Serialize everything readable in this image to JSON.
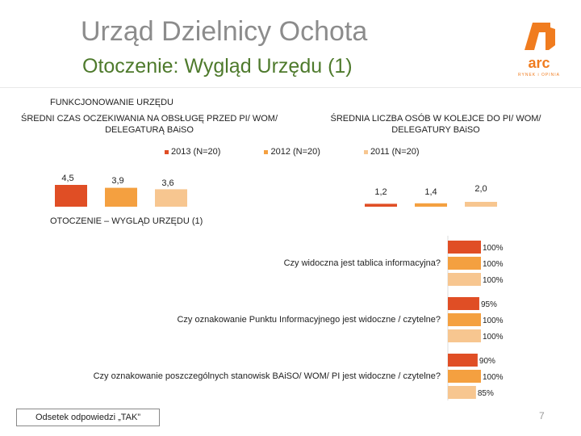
{
  "header": {
    "title": "Urząd Dzielnicy Ochota",
    "subtitle": "Otoczenie: Wygląd Urzędu (1)",
    "logo_text": "arc",
    "logo_subtext": "RYNEK i OPINIA"
  },
  "colors": {
    "s2013": "#e04e25",
    "s2012": "#f4a040",
    "s2011": "#f7c690"
  },
  "chart_data": [
    {
      "type": "bar",
      "section_title": "FUNKCJONOWANIE URZĘDU",
      "title": "ŚREDNI CZAS OCZEKIWANIA NA OBSŁUGĘ PRZED PI/ WOM/ DELEGATURĄ BAiSO",
      "series": [
        {
          "name": "2013 (N=20)",
          "values": [
            4.5
          ]
        },
        {
          "name": "2012 (N=20)",
          "values": [
            3.9
          ]
        },
        {
          "name": "2011 (N=20)",
          "values": [
            3.6
          ]
        }
      ],
      "value_labels": [
        "4,5",
        "3,9",
        "3,6"
      ]
    },
    {
      "type": "bar",
      "title": "ŚREDNIA LICZBA OSÓB W KOLEJCE DO PI/ WOM/ DELEGATURY BAiSO",
      "series": [
        {
          "name": "2013 (N=20)",
          "values": [
            1.2
          ]
        },
        {
          "name": "2012 (N=20)",
          "values": [
            1.4
          ]
        },
        {
          "name": "2011 (N=20)",
          "values": [
            2.0
          ]
        }
      ],
      "value_labels": [
        "1,2",
        "1,4",
        "2,0"
      ]
    },
    {
      "type": "bar",
      "orientation": "horizontal",
      "section_title": "OTOCZENIE – WYGLĄD URZĘDU (1)",
      "categories": [
        "Czy widoczna jest tablica informacyjna?",
        "Czy oznakowanie Punktu Informacyjnego jest widoczne / czytelne?",
        "Czy oznakowanie poszczególnych stanowisk BAiSO/ WOM/ PI jest widoczne / czytelne?"
      ],
      "series": [
        {
          "name": "2013 (N=20)",
          "values": [
            100,
            95,
            90
          ]
        },
        {
          "name": "2012 (N=20)",
          "values": [
            100,
            100,
            100
          ]
        },
        {
          "name": "2011 (N=20)",
          "values": [
            100,
            100,
            85
          ]
        }
      ],
      "value_labels": [
        [
          "100%",
          "100%",
          "100%"
        ],
        [
          "95%",
          "100%",
          "100%"
        ],
        [
          "90%",
          "100%",
          "85%"
        ]
      ],
      "footnote": "Odsetek odpowiedzi „TAK”"
    }
  ],
  "legend": [
    "2013 (N=20)",
    "2012 (N=20)",
    "2011 (N=20)"
  ],
  "page_number": "7"
}
